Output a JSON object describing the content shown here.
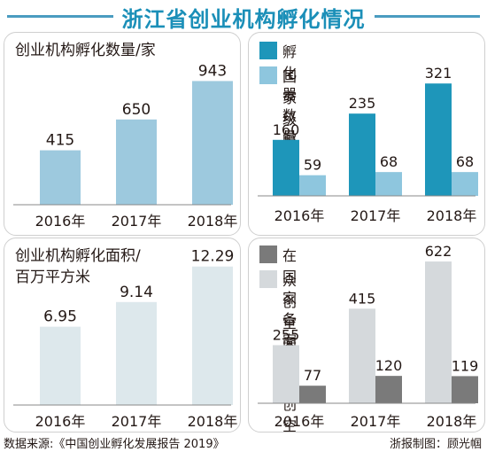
{
  "header": {
    "title": "浙江省创业机构孵化情况"
  },
  "footer": {
    "source": "数据来源:《中国创业孵化发展报告 2019》",
    "credit": "浙报制图：顾光帼"
  },
  "colors": {
    "title": "#1b8fb8",
    "bar_light_blue": "#9dc9de",
    "bar_teal": "#1e96ba",
    "bar_sky": "#8ec6de",
    "bar_pale": "#dde8ec",
    "bar_grey_light": "#d5d9dc",
    "bar_grey_dark": "#7a7a7a"
  },
  "chart_data": [
    {
      "type": "bar",
      "title": "创业机构孵化数量/家",
      "categories": [
        "2016年",
        "2017年",
        "2018年"
      ],
      "series": [
        {
          "values": [
            415,
            650,
            943
          ],
          "color": "#9dc9de"
        }
      ],
      "ylim": [
        0,
        1000
      ]
    },
    {
      "type": "bar",
      "title": "",
      "categories": [
        "2016年",
        "2017年",
        "2018年"
      ],
      "series": [
        {
          "name": "孵化器数量",
          "values": [
            160,
            235,
            321
          ],
          "color": "#1e96ba"
        },
        {
          "name": "国家级孵化器",
          "values": [
            59,
            68,
            68
          ],
          "color": "#8ec6de"
        }
      ],
      "legend_position": "top-left",
      "ylim": [
        0,
        400
      ]
    },
    {
      "type": "bar",
      "title": "创业机构孵化面积/\n百万平方米",
      "categories": [
        "2016年",
        "2017年",
        "2018年"
      ],
      "series": [
        {
          "values": [
            6.95,
            9.14,
            12.29
          ],
          "color": "#dde8ec"
        }
      ],
      "ylim": [
        0,
        14
      ]
    },
    {
      "type": "bar",
      "title": "",
      "categories": [
        "2016年",
        "2017年",
        "2018年"
      ],
      "series": [
        {
          "name": "众创空间数量",
          "values": [
            255,
            415,
            622
          ],
          "color": "#d5d9dc"
        },
        {
          "name": "在国家备案的众创空间",
          "values": [
            77,
            120,
            119
          ],
          "color": "#7a7a7a"
        }
      ],
      "legend_order": [
        "在国家备案的众创空间",
        "众创空间数量"
      ],
      "legend_position": "top-left",
      "ylim": [
        0,
        700
      ]
    }
  ]
}
